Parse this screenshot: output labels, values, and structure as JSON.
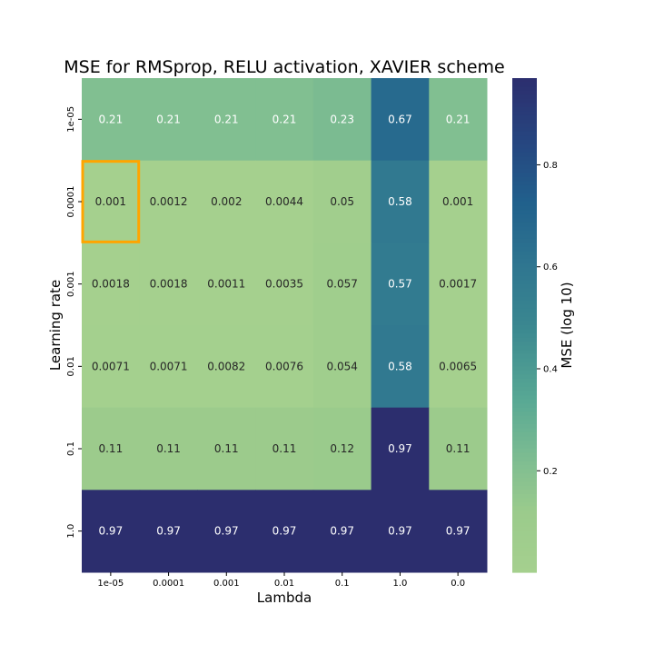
{
  "chart_data": {
    "type": "heatmap",
    "title": "MSE for RMSprop, RELU activation, XAVIER scheme",
    "xlabel": "Lambda",
    "ylabel": "Learning rate",
    "x_categories": [
      "1e-05",
      "0.0001",
      "0.001",
      "0.01",
      "0.1",
      "1.0",
      "0.0"
    ],
    "y_categories": [
      "1e-05",
      "0.0001",
      "0.001",
      "0.01",
      "0.1",
      "1.0"
    ],
    "values": [
      [
        0.21,
        0.21,
        0.21,
        0.21,
        0.23,
        0.67,
        0.21
      ],
      [
        0.001,
        0.0012,
        0.002,
        0.0044,
        0.05,
        0.58,
        0.001
      ],
      [
        0.0018,
        0.0018,
        0.0011,
        0.0035,
        0.057,
        0.57,
        0.0017
      ],
      [
        0.0071,
        0.0071,
        0.0082,
        0.0076,
        0.054,
        0.58,
        0.0065
      ],
      [
        0.11,
        0.11,
        0.11,
        0.11,
        0.12,
        0.97,
        0.11
      ],
      [
        0.97,
        0.97,
        0.97,
        0.97,
        0.97,
        0.97,
        0.97
      ]
    ],
    "colorbar": {
      "label": "MSE (log 10)",
      "ticks": [
        "0.2",
        "0.4",
        "0.6",
        "0.8"
      ],
      "range": [
        0.001,
        0.97
      ]
    },
    "highlight": {
      "row": 1,
      "col": 0,
      "color": "#ffa500"
    },
    "colormap": "crest"
  }
}
